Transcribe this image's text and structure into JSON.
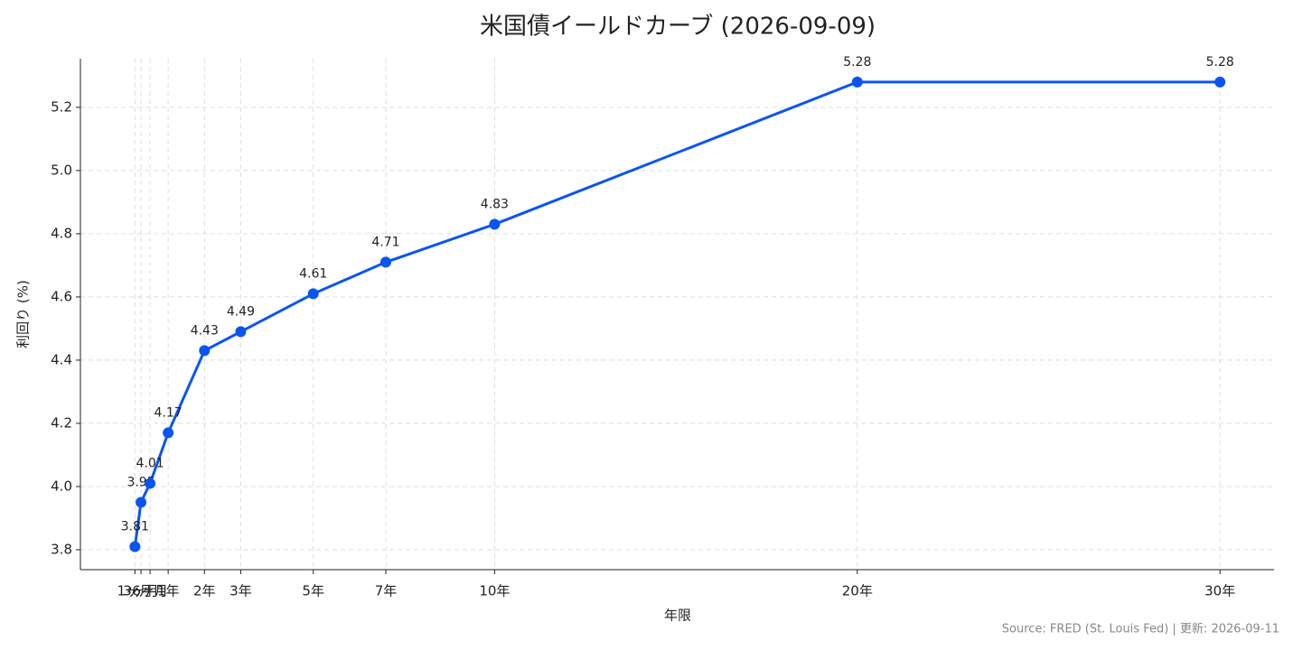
{
  "chart_data": {
    "type": "line",
    "title": "米国債イールドカーブ (2026-09-09)",
    "x_label": "年限",
    "y_label": "利回り (%)",
    "source": "Source: FRED (St. Louis Fed) | 更新: 2026-09-11",
    "x": [
      0.083,
      0.25,
      0.5,
      1,
      2,
      3,
      5,
      7,
      10,
      20,
      30
    ],
    "values": [
      3.81,
      3.95,
      4.01,
      4.17,
      4.43,
      4.49,
      4.61,
      4.71,
      4.83,
      5.28,
      5.28
    ],
    "color": "#0a55f0",
    "xlim": [
      -1.42,
      31.49
    ],
    "ylim": [
      3.737,
      5.354
    ],
    "xticks": [
      {
        "value": 0.083,
        "label": "1ヶ月"
      },
      {
        "value": 0.25,
        "label": "3ヶ月"
      },
      {
        "value": 0.5,
        "label": "6ヶ月"
      },
      {
        "value": 1,
        "label": "1年"
      },
      {
        "value": 2,
        "label": "2年"
      },
      {
        "value": 3,
        "label": "3年"
      },
      {
        "value": 5,
        "label": "5年"
      },
      {
        "value": 7,
        "label": "7年"
      },
      {
        "value": 10,
        "label": "10年"
      },
      {
        "value": 20,
        "label": "20年"
      },
      {
        "value": 30,
        "label": "30年"
      }
    ],
    "yticks": [
      3.8,
      {
        "value": 4,
        "label": "4.0"
      },
      4.2,
      4.4,
      4.6,
      4.8,
      {
        "value": 5,
        "label": "5.0"
      },
      5.2
    ],
    "grid": true
  }
}
